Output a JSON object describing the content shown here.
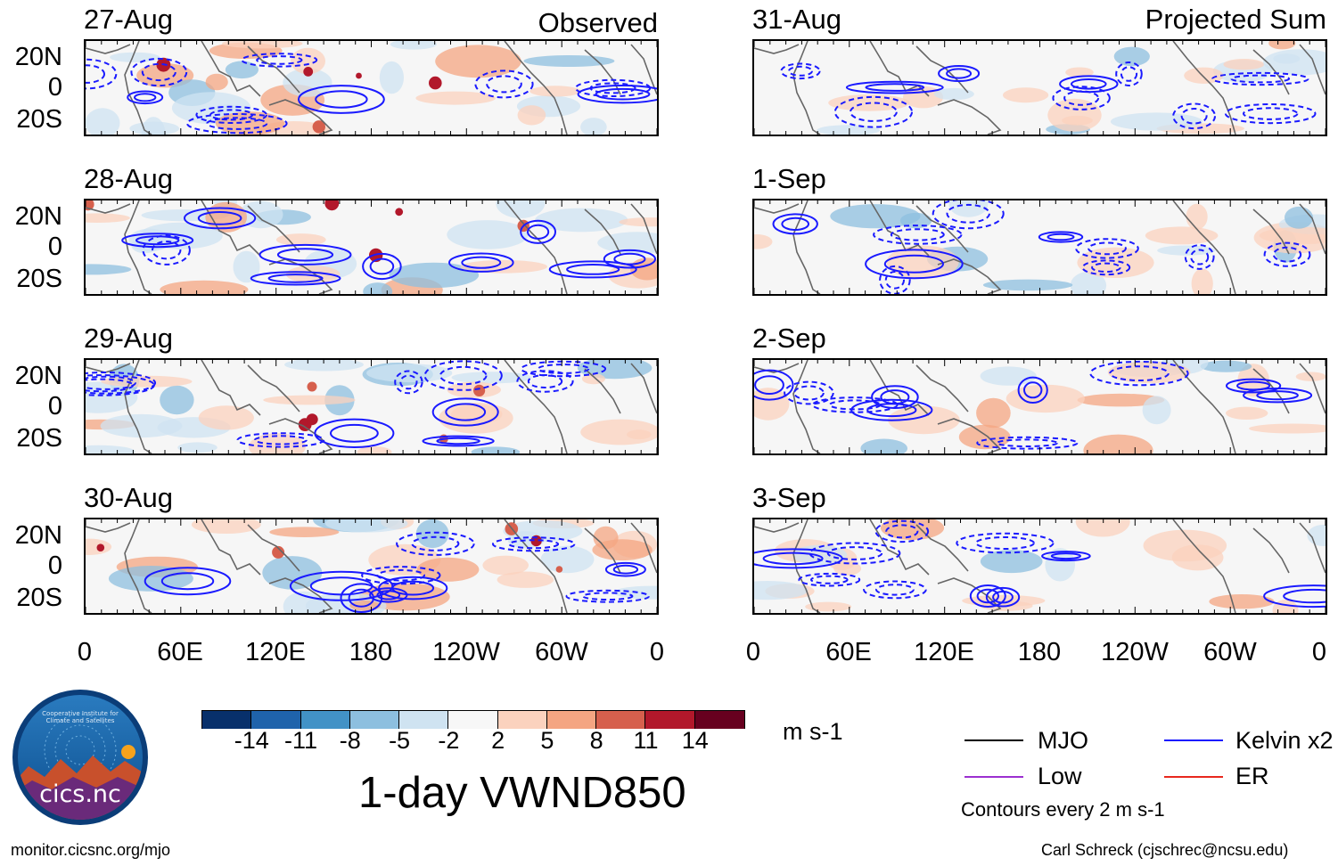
{
  "observed_title": "Observed",
  "projected_title": "Projected Sum",
  "left_dates": [
    "27-Aug",
    "28-Aug",
    "29-Aug",
    "30-Aug"
  ],
  "right_dates": [
    "31-Aug",
    "1-Sep",
    "2-Sep",
    "3-Sep"
  ],
  "lat_labels": [
    "20N",
    "0",
    "20S"
  ],
  "lon_labels": [
    "0",
    "60E",
    "120E",
    "180",
    "120W",
    "60W",
    "0"
  ],
  "colorbar": {
    "colors": [
      "#08306b",
      "#1f63ab",
      "#4292c6",
      "#8dbfdf",
      "#cfe3f1",
      "#f7f7f7",
      "#fbd2be",
      "#f4a582",
      "#d6604d",
      "#b2182b",
      "#67001f"
    ],
    "ticks": [
      "-14",
      "-11",
      "-8",
      "-5",
      "-2",
      "2",
      "5",
      "8",
      "11",
      "14"
    ],
    "units": "m s-1"
  },
  "main_title": "1-day VWND850",
  "legend": [
    {
      "label": "MJO",
      "color": "#000000"
    },
    {
      "label": "Kelvin x2",
      "color": "#1a1aff"
    },
    {
      "label": "Low",
      "color": "#9b30d0"
    },
    {
      "label": "ER",
      "color": "#e8281e"
    }
  ],
  "contour_note": "Contours every 2 m s-1",
  "logo_text": "cics.nc",
  "logo_ring_text": "Cooperative Institute for Climate and Satellites",
  "footer_left": "monitor.cicsnc.org/mjo",
  "footer_right": "Carl Schreck (cjschrec@ncsu.edu)",
  "colors": {
    "kelvin": "#1a1aff",
    "coast": "#666666",
    "warm": "#f4a582",
    "cool": "#8dbfdf"
  }
}
